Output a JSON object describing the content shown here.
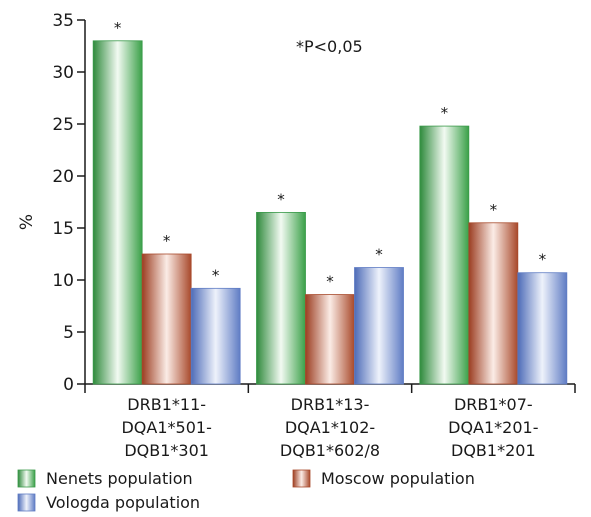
{
  "chart_data": {
    "type": "bar",
    "ylabel": "%",
    "ylim": [
      0,
      35
    ],
    "yticks": [
      "0",
      "5",
      "10",
      "15",
      "20",
      "25",
      "30",
      "35"
    ],
    "annotation": "*P<0,05",
    "categories": [
      [
        "DRB1*11-",
        "DQA1*501-",
        "DQB1*301"
      ],
      [
        "DRB1*13-",
        "DQA1*102-",
        "DQB1*602/8"
      ],
      [
        "DRB1*07-",
        "DQA1*201-",
        "DQB1*201"
      ]
    ],
    "series": [
      {
        "name": "Nenets population",
        "values": [
          33,
          16.5,
          24.8
        ],
        "color": "#3a9a4a"
      },
      {
        "name": "Moscow population",
        "values": [
          12.5,
          8.6,
          15.5
        ],
        "color": "#a8492b"
      },
      {
        "name": "Vologda population",
        "values": [
          9.2,
          11.2,
          10.7
        ],
        "color": "#5f7cc4"
      }
    ],
    "significance_marker": "*",
    "legend_position": "bottom",
    "grid": false
  }
}
